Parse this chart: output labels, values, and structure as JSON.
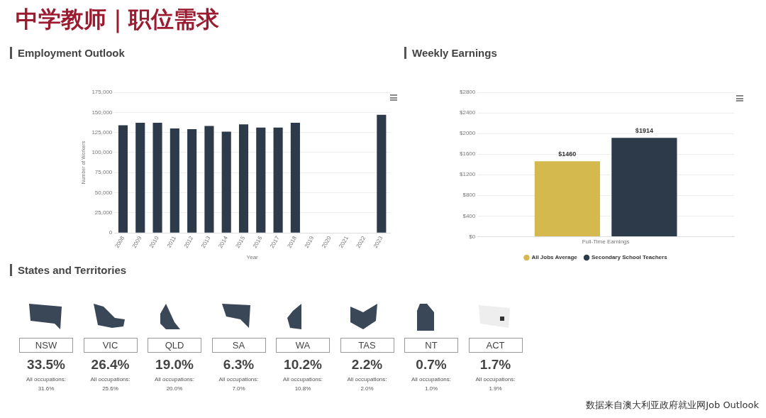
{
  "chart_data": [
    {
      "type": "bar",
      "title": "中学教师｜职位需求",
      "subtitle": "Employment Outlook",
      "xlabel": "Year",
      "ylabel": "Number of Workers",
      "categories": [
        "2008",
        "2009",
        "2010",
        "2011",
        "2012",
        "2013",
        "2014",
        "2015",
        "2016",
        "2017",
        "2018",
        "2019",
        "2020",
        "2021",
        "2022",
        "2023"
      ],
      "series": [
        {
          "color": "#2c3a4a",
          "values": [
            134000,
            137000,
            137000,
            130000,
            129000,
            133000,
            126000,
            135000,
            131000,
            131000,
            137000,
            null,
            null,
            null,
            null,
            147000
          ]
        }
      ],
      "ylim": [
        0,
        175000
      ],
      "yticks": [
        0,
        {
          "value": 25000,
          "label": "25,000"
        },
        {
          "value": 50000,
          "label": "50,000"
        },
        {
          "value": 75000,
          "label": "75,000"
        },
        {
          "value": 100000,
          "label": "100,000"
        },
        {
          "value": 125000,
          "label": "125,000"
        },
        {
          "value": 150000,
          "label": "150,000"
        },
        {
          "value": 175000,
          "label": "175,000"
        }
      ],
      "grid": "y",
      "legend": false
    },
    {
      "type": "bar",
      "title": "Weekly Earnings",
      "categories": [
        "Full-Time Earnings"
      ],
      "series": [
        {
          "name": "All Jobs Average",
          "color": "#d4b94e",
          "values": [
            1460
          ],
          "value_labels": [
            "$1460"
          ]
        },
        {
          "name": "Secondary School Teachers",
          "color": "#2c3a4a",
          "values": [
            1914
          ],
          "value_labels": [
            "$1914"
          ]
        }
      ],
      "ylim": [
        0,
        2800
      ],
      "yticks": [
        {
          "value": 0,
          "label": "$0"
        },
        {
          "value": 400,
          "label": "$400"
        },
        {
          "value": 800,
          "label": "$800"
        },
        {
          "value": 1200,
          "label": "$1200"
        },
        {
          "value": 1600,
          "label": "$1600"
        },
        {
          "value": 2000,
          "label": "$2000"
        },
        {
          "value": 2400,
          "label": "$2400"
        },
        {
          "value": 2800,
          "label": "$2800"
        }
      ],
      "grid": "y",
      "legend": "bottom"
    },
    {
      "type": "other",
      "title": "States and Territories",
      "categories": [
        "NSW",
        "VIC",
        "QLD",
        "SA",
        "WA",
        "TAS",
        "NT",
        "ACT"
      ],
      "series": [
        {
          "values": [
            33.5,
            26.4,
            19.0,
            6.3,
            10.2,
            2.2,
            0.7,
            1.7
          ],
          "value_labels": [
            "33.5%",
            "26.4%",
            "19.0%",
            "6.3%",
            "10.2%",
            "2.2%",
            "0.7%",
            "1.7%"
          ]
        },
        {
          "name": "All occupations:",
          "values": [
            31.6,
            25.6,
            20.0,
            7.0,
            10.8,
            2.0,
            1.0,
            1.9
          ],
          "value_labels": [
            "31.6%",
            "25.6%",
            "20.0%",
            "7.0%",
            "10.8%",
            "2.0%",
            "1.0%",
            "1.9%"
          ]
        }
      ],
      "annotations": [
        "数据来自澳大利亚政府就业网Job Outlook"
      ]
    }
  ]
}
